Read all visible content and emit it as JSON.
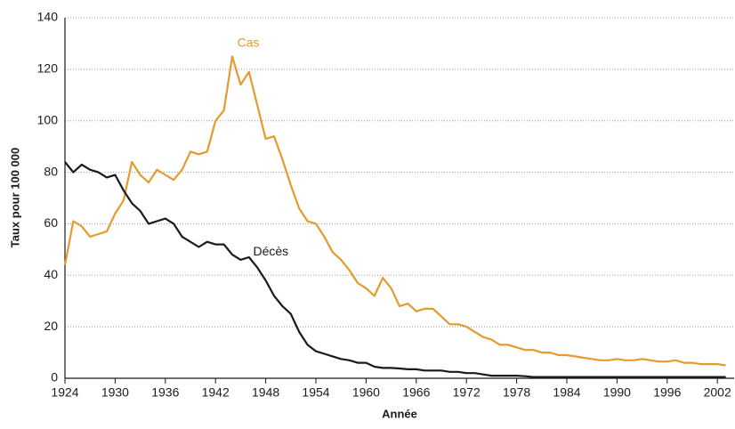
{
  "chart_data": {
    "type": "line",
    "x_label": "Année",
    "y_label": "Taux pour 100 000",
    "x": [
      1924,
      1925,
      1926,
      1927,
      1928,
      1929,
      1930,
      1931,
      1932,
      1933,
      1934,
      1935,
      1936,
      1937,
      1938,
      1939,
      1940,
      1941,
      1942,
      1943,
      1944,
      1945,
      1946,
      1947,
      1948,
      1949,
      1950,
      1951,
      1952,
      1953,
      1954,
      1955,
      1956,
      1957,
      1958,
      1959,
      1960,
      1961,
      1962,
      1963,
      1964,
      1965,
      1966,
      1967,
      1968,
      1969,
      1970,
      1971,
      1972,
      1973,
      1974,
      1975,
      1976,
      1977,
      1978,
      1979,
      1980,
      1981,
      1982,
      1983,
      1984,
      1985,
      1986,
      1987,
      1988,
      1989,
      1990,
      1991,
      1992,
      1993,
      1994,
      1995,
      1996,
      1997,
      1998,
      1999,
      2000,
      2001,
      2002,
      2003
    ],
    "series": [
      {
        "name": "Cas",
        "color": "#e59a2f",
        "values": [
          44,
          61,
          59,
          55,
          56,
          57,
          64,
          69,
          84,
          79,
          76,
          81,
          79,
          77,
          81,
          88,
          87,
          88,
          100,
          104,
          125,
          114,
          119,
          106,
          93,
          94,
          85,
          75,
          66,
          61,
          60,
          55,
          49,
          46,
          42,
          37,
          35,
          32,
          39,
          35,
          28,
          29,
          26,
          27,
          27,
          24,
          21,
          21,
          20,
          18,
          16,
          15,
          13,
          13,
          12,
          11,
          11,
          10,
          10,
          9,
          9,
          8.5,
          8,
          7.5,
          7,
          7,
          7.5,
          7,
          7,
          7.5,
          7,
          6.5,
          6.5,
          7,
          6,
          6,
          5.5,
          5.5,
          5.5,
          5
        ]
      },
      {
        "name": "Décès",
        "color": "#1a1a1a",
        "values": [
          84,
          80,
          83,
          81,
          80,
          78,
          79,
          73,
          68,
          65,
          60,
          61,
          62,
          60,
          55,
          53,
          51,
          53,
          52,
          52,
          48,
          46,
          47,
          43,
          38,
          32,
          28,
          25,
          18,
          13,
          10.5,
          9.5,
          8.5,
          7.5,
          7,
          6,
          6,
          4.5,
          4,
          4,
          3.8,
          3.5,
          3.5,
          3,
          3,
          3,
          2.5,
          2.5,
          2,
          2,
          1.5,
          1,
          1,
          1,
          1,
          0.8,
          0.5,
          0.5,
          0.5,
          0.5,
          0.5,
          0.5,
          0.5,
          0.5,
          0.5,
          0.5,
          0.5,
          0.5,
          0.5,
          0.5,
          0.5,
          0.5,
          0.5,
          0.5,
          0.5,
          0.5,
          0.5,
          0.5,
          0.5,
          0.5
        ]
      }
    ],
    "xlim": [
      1924,
      2004
    ],
    "xticks": [
      1924,
      1930,
      1936,
      1942,
      1948,
      1954,
      1960,
      1966,
      1972,
      1978,
      1984,
      1990,
      1996,
      2002
    ],
    "ylim": [
      0,
      140
    ],
    "yticks": [
      0,
      20,
      40,
      60,
      80,
      100,
      120,
      140
    ],
    "grid": true
  }
}
